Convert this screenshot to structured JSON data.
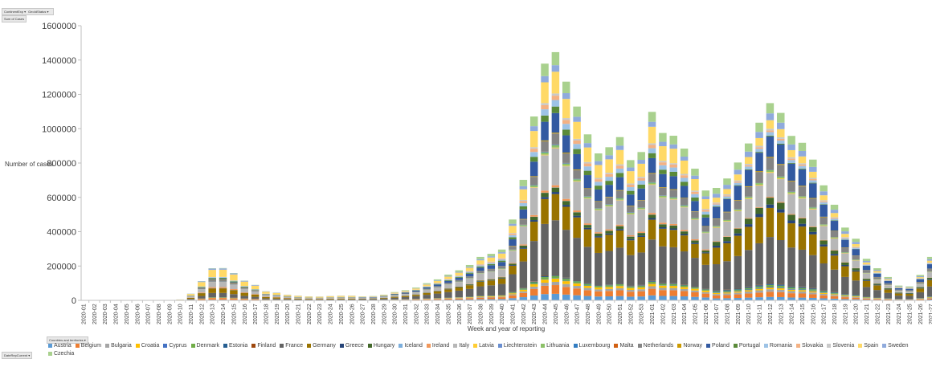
{
  "pivot_buttons": {
    "top_filters": [
      "ContinentExp ▾",
      "GeoIdStatus ▾"
    ],
    "value_field": "Sum of Cases",
    "legend_field": "Countries and territories ▾",
    "axis_field": "DateRepCurrent ▾"
  },
  "chart_data": {
    "type": "bar",
    "stacked": true,
    "ylabel": "Number of cases",
    "xlabel": "Week and year of reporting",
    "ylim": [
      0,
      1600000
    ],
    "yticks": [
      "0",
      "200000",
      "400000",
      "600000",
      "800000",
      "1000000",
      "1200000",
      "1400000",
      "1600000"
    ],
    "grid": false,
    "legend_position": "bottom",
    "categories": [
      "2020-01",
      "2020-02",
      "2020-03",
      "2020-04",
      "2020-05",
      "2020-06",
      "2020-07",
      "2020-08",
      "2020-09",
      "2020-10",
      "2020-11",
      "2020-12",
      "2020-13",
      "2020-14",
      "2020-15",
      "2020-16",
      "2020-17",
      "2020-18",
      "2020-19",
      "2020-20",
      "2020-21",
      "2020-22",
      "2020-23",
      "2020-24",
      "2020-25",
      "2020-26",
      "2020-27",
      "2020-28",
      "2020-29",
      "2020-30",
      "2020-31",
      "2020-32",
      "2020-33",
      "2020-34",
      "2020-35",
      "2020-36",
      "2020-37",
      "2020-38",
      "2020-39",
      "2020-40",
      "2020-41",
      "2020-42",
      "2020-43",
      "2020-44",
      "2020-45",
      "2020-46",
      "2020-47",
      "2020-48",
      "2020-49",
      "2020-50",
      "2020-51",
      "2020-52",
      "2020-53",
      "2021-01",
      "2021-02",
      "2021-03",
      "2021-04",
      "2021-05",
      "2021-06",
      "2021-07",
      "2021-08",
      "2021-09",
      "2021-10",
      "2021-11",
      "2021-12",
      "2021-13",
      "2021-14",
      "2021-15",
      "2021-16",
      "2021-17",
      "2021-18",
      "2021-19",
      "2021-20",
      "2021-21",
      "2021-22",
      "2021-23",
      "2021-24",
      "2021-25",
      "2021-26",
      "2021-27"
    ],
    "totals": [
      0,
      0,
      0,
      0,
      0,
      0,
      0,
      200,
      1500,
      5000,
      39000,
      112000,
      187000,
      188000,
      159000,
      115000,
      90000,
      53000,
      45000,
      33000,
      27000,
      23000,
      22000,
      25000,
      27000,
      27000,
      23000,
      25000,
      33000,
      48000,
      59000,
      75000,
      100000,
      122000,
      150000,
      175000,
      206000,
      253000,
      271000,
      296000,
      471000,
      702000,
      1071000,
      1379000,
      1446000,
      1274000,
      1129000,
      967000,
      856000,
      892000,
      951000,
      817000,
      864000,
      1098000,
      975000,
      959000,
      884000,
      767000,
      640000,
      655000,
      710000,
      803000,
      914000,
      1035000,
      1149000,
      1092000,
      958000,
      918000,
      820000,
      670000,
      557000,
      424000,
      359000,
      242000,
      187000,
      136000,
      86000,
      81000,
      148000,
      253000
    ],
    "share_note": "approximate country shares per wave: [2020-01..2020-26, 2020-27..2021-06, 2021-07..2021-27]",
    "series": [
      {
        "name": "Austria",
        "color": "#5B9BD5",
        "shares": [
          0.02,
          0.03,
          0.02
        ]
      },
      {
        "name": "Belgium",
        "color": "#ED7D31",
        "shares": [
          0.05,
          0.04,
          0.03
        ]
      },
      {
        "name": "Bulgaria",
        "color": "#A5A5A5",
        "shares": [
          0.002,
          0.015,
          0.015
        ]
      },
      {
        "name": "Croatia",
        "color": "#FFC000",
        "shares": [
          0.003,
          0.015,
          0.01
        ]
      },
      {
        "name": "Cyprus",
        "color": "#4472C4",
        "shares": [
          0.001,
          0.002,
          0.005
        ]
      },
      {
        "name": "Denmark",
        "color": "#70AD47",
        "shares": [
          0.01,
          0.01,
          0.01
        ]
      },
      {
        "name": "Estonia",
        "color": "#255E91",
        "shares": [
          0.003,
          0.004,
          0.008
        ]
      },
      {
        "name": "Finland",
        "color": "#9E480E",
        "shares": [
          0.005,
          0.002,
          0.003
        ]
      },
      {
        "name": "France",
        "color": "#636363",
        "shares": [
          0.13,
          0.25,
          0.27
        ]
      },
      {
        "name": "Germany",
        "color": "#997300",
        "shares": [
          0.14,
          0.12,
          0.17
        ]
      },
      {
        "name": "Greece",
        "color": "#264478",
        "shares": [
          0.004,
          0.01,
          0.02
        ]
      },
      {
        "name": "Hungary",
        "color": "#43682B",
        "shares": [
          0.004,
          0.02,
          0.04
        ]
      },
      {
        "name": "Iceland",
        "color": "#7CAFDD",
        "shares": [
          0.002,
          0.001,
          0.0005
        ]
      },
      {
        "name": "Ireland",
        "color": "#F1975A",
        "shares": [
          0.03,
          0.01,
          0.005
        ]
      },
      {
        "name": "Italy",
        "color": "#B7B7B7",
        "shares": [
          0.16,
          0.17,
          0.14
        ]
      },
      {
        "name": "Latvia",
        "color": "#FFCD33",
        "shares": [
          0.001,
          0.003,
          0.005
        ]
      },
      {
        "name": "Liechtenstein",
        "color": "#698ED0",
        "shares": [
          0.0001,
          0.0005,
          0.0002
        ]
      },
      {
        "name": "Lithuania",
        "color": "#8CC168",
        "shares": [
          0.002,
          0.01,
          0.01
        ]
      },
      {
        "name": "Luxembourg",
        "color": "#327DC2",
        "shares": [
          0.005,
          0.003,
          0.002
        ]
      },
      {
        "name": "Malta",
        "color": "#D26012",
        "shares": [
          0.001,
          0.001,
          0.001
        ]
      },
      {
        "name": "Netherlands",
        "color": "#848484",
        "shares": [
          0.05,
          0.05,
          0.07
        ]
      },
      {
        "name": "Norway",
        "color": "#CC9A00",
        "shares": [
          0.01,
          0.004,
          0.005
        ]
      },
      {
        "name": "Poland",
        "color": "#335AA1",
        "shares": [
          0.02,
          0.09,
          0.12
        ]
      },
      {
        "name": "Portugal",
        "color": "#5A8A39",
        "shares": [
          0.03,
          0.03,
          0.005
        ]
      },
      {
        "name": "Romania",
        "color": "#9DC3E6",
        "shares": [
          0.025,
          0.03,
          0.02
        ]
      },
      {
        "name": "Slovakia",
        "color": "#F4B183",
        "shares": [
          0.002,
          0.02,
          0.01
        ]
      },
      {
        "name": "Slovenia",
        "color": "#C9C9C9",
        "shares": [
          0.002,
          0.01,
          0.01
        ]
      },
      {
        "name": "Spain",
        "color": "#FFD966",
        "shares": [
          0.22,
          0.1,
          0.05
        ]
      },
      {
        "name": "Sweden",
        "color": "#8FAADC",
        "shares": [
          0.04,
          0.03,
          0.04
        ]
      },
      {
        "name": "Czechia",
        "color": "#A9D18E",
        "shares": [
          0.01,
          0.06,
          0.06
        ]
      }
    ]
  }
}
